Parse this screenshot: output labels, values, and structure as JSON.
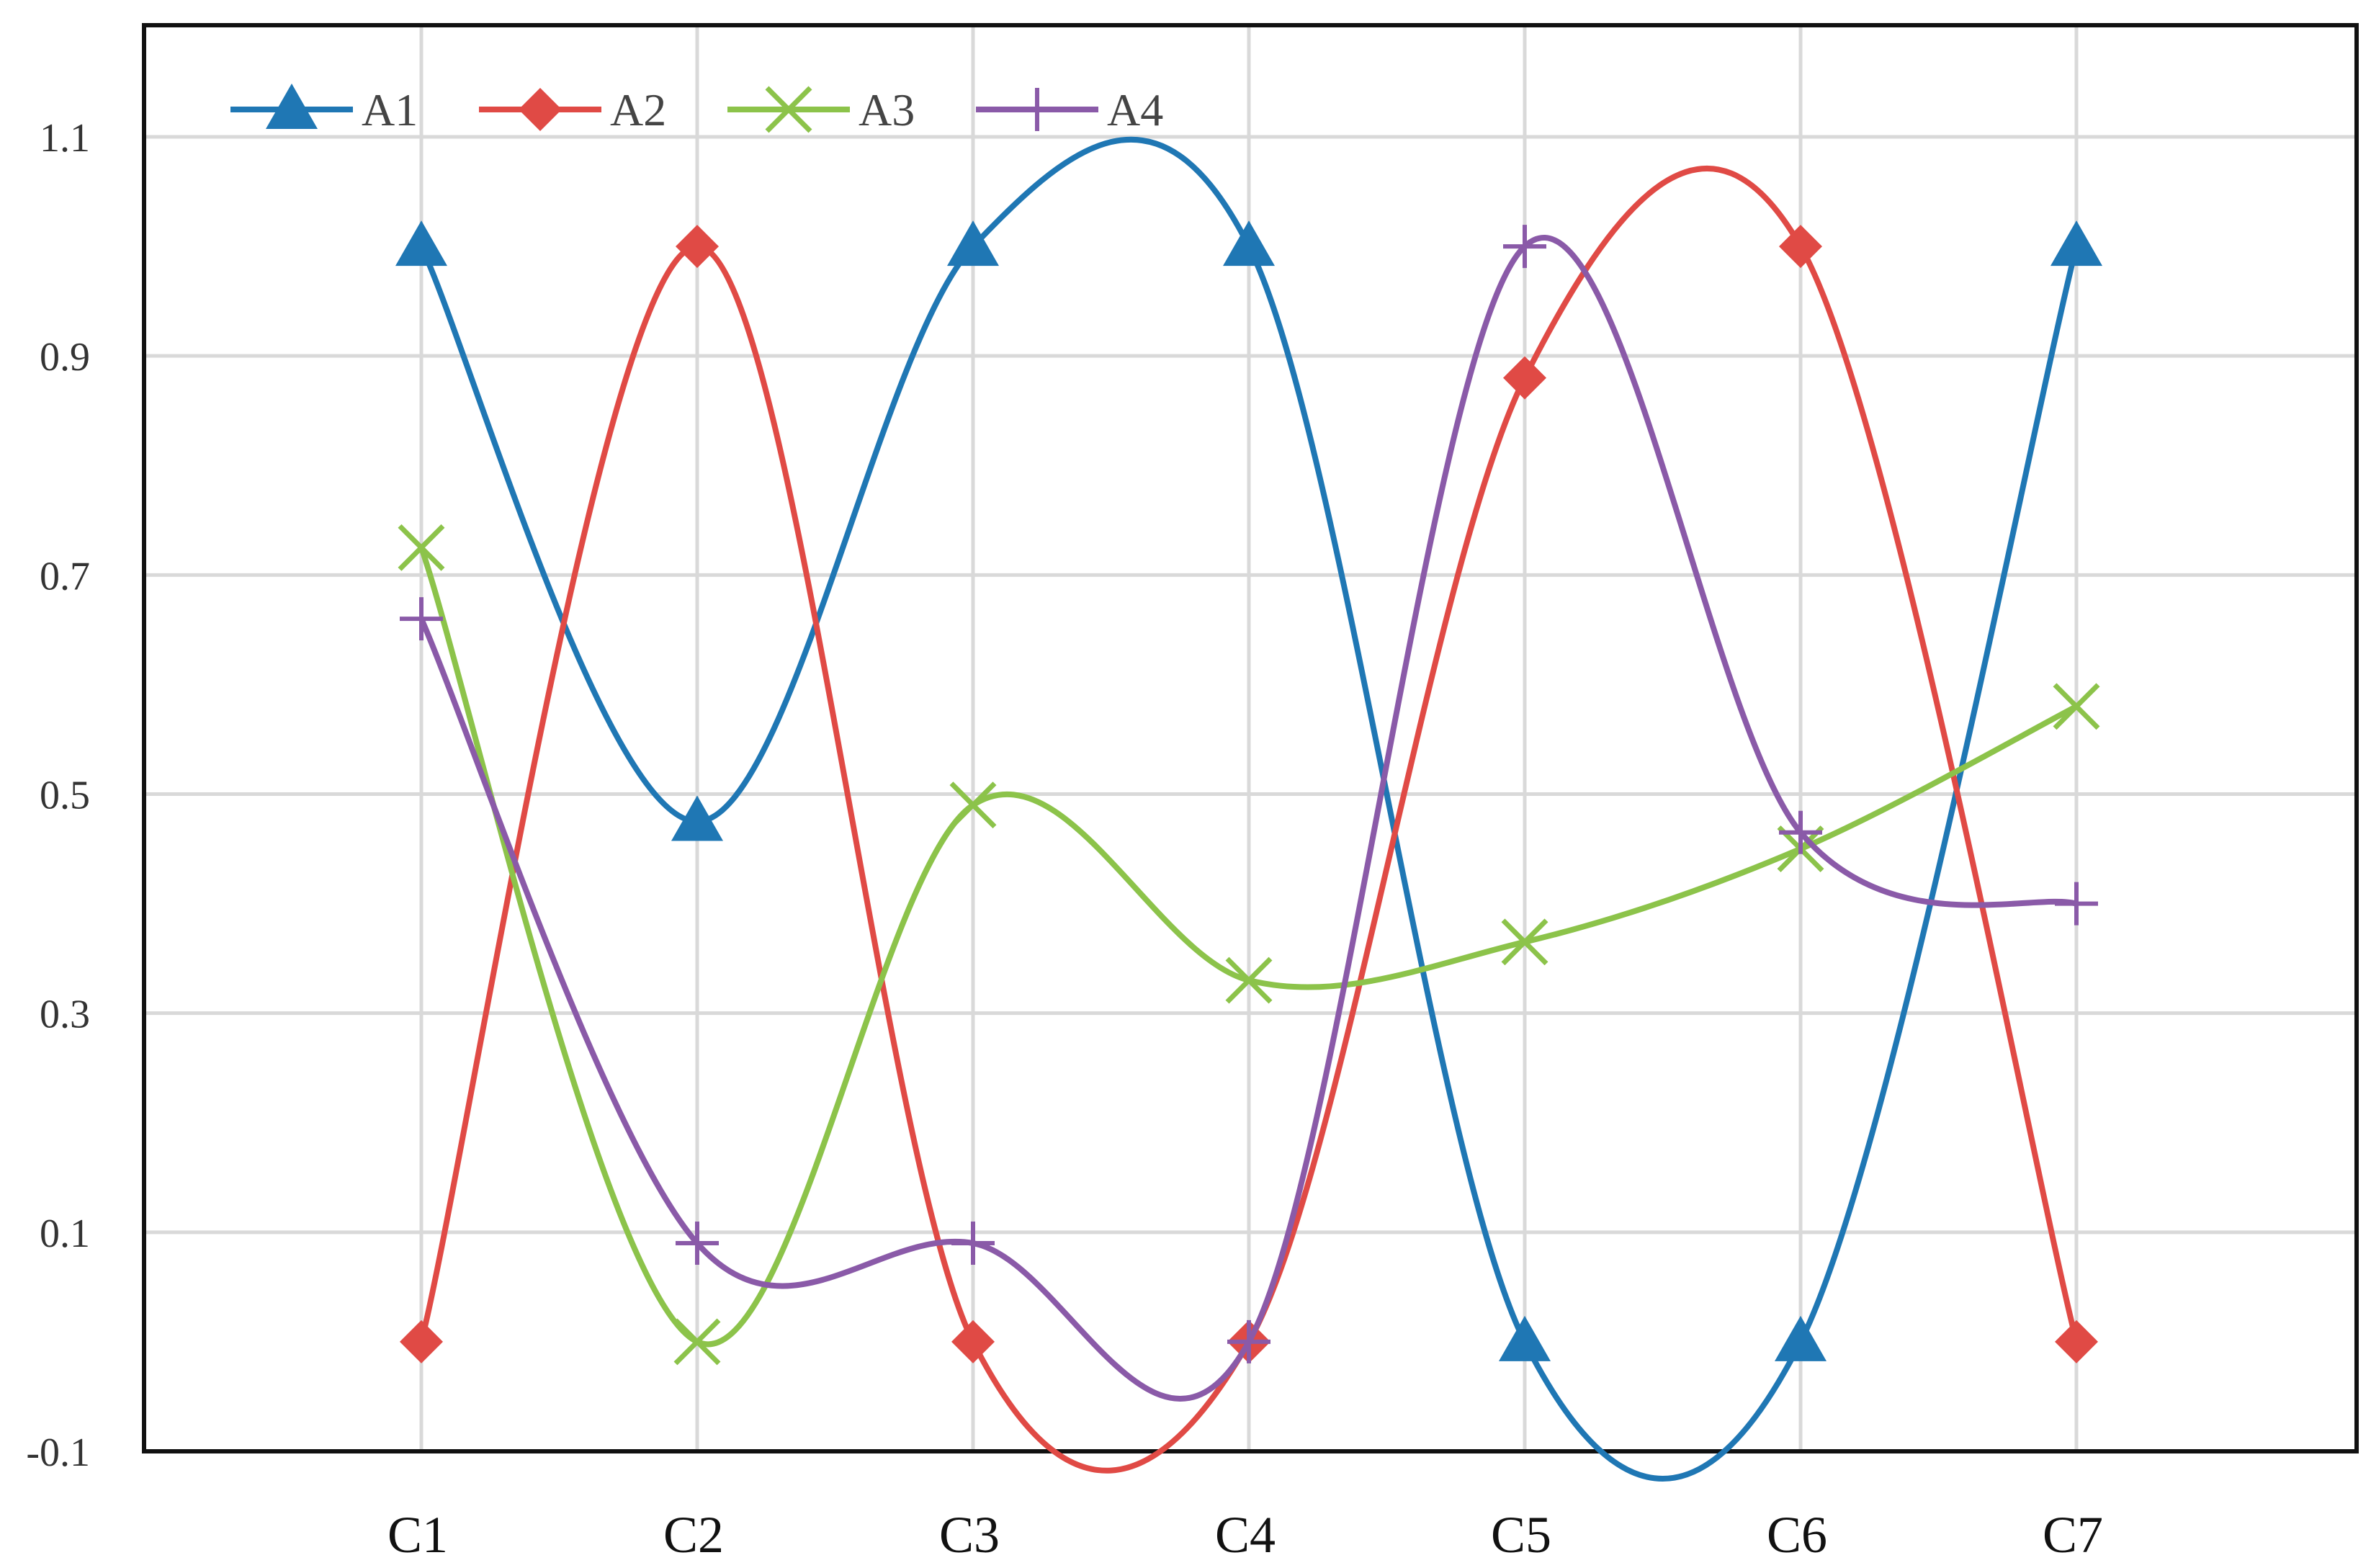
{
  "chart_data": {
    "type": "line",
    "smooth": true,
    "categories": [
      "C1",
      "C2",
      "C3",
      "C4",
      "C5",
      "C6",
      "C7"
    ],
    "series": [
      {
        "name": "A1",
        "marker": "triangle",
        "color": "#1f77b4",
        "values": [
          1.0,
          0.475,
          1.0,
          1.0,
          0.0,
          0.0,
          1.0
        ]
      },
      {
        "name": "A2",
        "marker": "diamond",
        "color": "#e04a45",
        "values": [
          0.0,
          1.0,
          0.0,
          0.0,
          0.88,
          1.0,
          0.0
        ]
      },
      {
        "name": "A3",
        "marker": "x",
        "color": "#8cc34a",
        "values": [
          0.725,
          0.0,
          0.49,
          0.33,
          0.365,
          0.45,
          0.58
        ]
      },
      {
        "name": "A4",
        "marker": "plus",
        "color": "#8a5aa8",
        "values": [
          0.66,
          0.09,
          0.09,
          0.0,
          1.0,
          0.465,
          0.4
        ]
      }
    ],
    "y_ticks": [
      "-0.1",
      "0.1",
      "0.3",
      "0.5",
      "0.7",
      "0.9",
      "1.1"
    ],
    "ylim": [
      -0.1,
      1.2
    ],
    "grid": true,
    "legend_position": "top-left"
  }
}
